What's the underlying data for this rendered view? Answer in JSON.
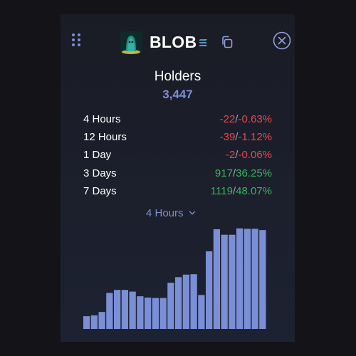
{
  "header": {
    "token_name": "BLOB",
    "icons": {
      "drag": "drag-handle-icon",
      "avatar": "blob-token-avatar",
      "chain": "solana-icon",
      "copy": "copy-icon",
      "close": "close-icon"
    }
  },
  "holders": {
    "title": "Holders",
    "count": "3,447"
  },
  "stats": [
    {
      "period": "4 Hours",
      "abs": "-22",
      "pct": "-0.63%",
      "trend": "negative"
    },
    {
      "period": "12 Hours",
      "abs": "-39",
      "pct": "-1.12%",
      "trend": "negative"
    },
    {
      "period": "1 Day",
      "abs": "-2",
      "pct": "-0.06%",
      "trend": "negative"
    },
    {
      "period": "3 Days",
      "abs": "917",
      "pct": "36.25%",
      "trend": "positive"
    },
    {
      "period": "7 Days",
      "abs": "1119",
      "pct": "48.07%",
      "trend": "positive"
    }
  ],
  "range_select": {
    "value": "4 Hours"
  },
  "colors": {
    "accent": "#7b8fd6",
    "bar": "#7b8fd6",
    "negative": "#e8474b",
    "positive": "#39b65a",
    "panel": "#1c1f2b",
    "background": "#141418"
  },
  "chart_data": {
    "type": "bar",
    "values": [
      2330,
      2332,
      2340,
      2385,
      2392,
      2392,
      2388,
      2377,
      2374,
      2373,
      2373,
      2409,
      2422,
      2428,
      2429,
      2380,
      2483,
      2535,
      2522,
      2522,
      2537,
      2536,
      2536,
      2533
    ],
    "ylim": [
      2300,
      2545
    ],
    "grid": false
  }
}
